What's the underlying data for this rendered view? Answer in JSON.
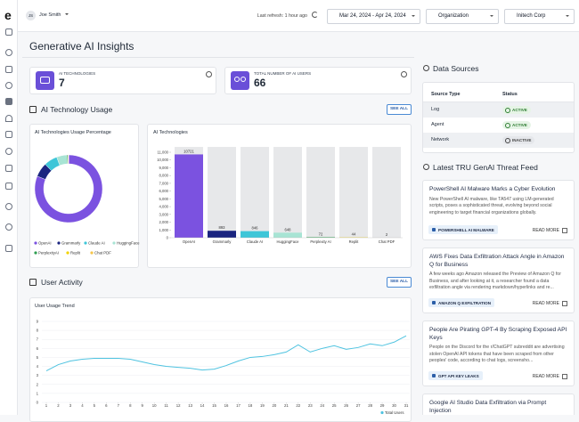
{
  "header": {
    "user_initials": "JS",
    "user_name": "Joe Smith",
    "last_refresh": "Last refresh: 1 hour ago",
    "date_range": "Mar 24, 2024 - Apr 24, 2024",
    "org_filter": "Organization",
    "org_value": "Initech Corp"
  },
  "title": "Generative AI Insights",
  "kpis": [
    {
      "label": "AI TECHNOLOGIES",
      "value": 7
    },
    {
      "label": "TOTAL NUMBER OF AI USERS",
      "value": 66
    }
  ],
  "usage": {
    "title": "AI Technology Usage",
    "see_all": "SEE ALL",
    "donut": {
      "type": "donut",
      "title": "AI Technologies Usage Percentage",
      "categories": [
        "OpenAI",
        "Grammarly",
        "Claude AI",
        "HuggingFace",
        "PerplexityAI",
        "Replit",
        "Chat PDF"
      ],
      "values": [
        81.1,
        6.8,
        6.4,
        4.9,
        0.5,
        0.3,
        0.02
      ],
      "colors": [
        "#7b52e0",
        "#1b2580",
        "#3ec6d8",
        "#a8e4d4",
        "#2e9e50",
        "#f2d200",
        "#f6c54a"
      ]
    },
    "bars": {
      "type": "bar",
      "title": "AI Technologies",
      "categories": [
        "OpenAI",
        "Grammarly",
        "Claude AI",
        "HuggingFace",
        "Perplexity AI",
        "Replit",
        "Chat PDF"
      ],
      "values": [
        10721,
        893,
        846,
        648,
        72,
        44,
        2
      ],
      "colors": [
        "#7b52e0",
        "#1b2580",
        "#3ec6d8",
        "#a8e4d4",
        "#2e9e50",
        "#f2d200",
        "#f6c54a"
      ],
      "ylim": [
        0,
        11000
      ],
      "yticks": [
        0,
        {
          "value": 1000,
          "label": "1,000"
        },
        {
          "value": 2000,
          "label": "2,000"
        },
        {
          "value": 3000,
          "label": "3,000"
        },
        {
          "value": 4000,
          "label": "4,000"
        },
        {
          "value": 5000,
          "label": "5,000"
        },
        {
          "value": 6000,
          "label": "6,000"
        },
        {
          "value": 7000,
          "label": "7,000"
        },
        {
          "value": 8000,
          "label": "8,000"
        },
        {
          "value": 9000,
          "label": "9,000"
        },
        {
          "value": 10000,
          "label": "10,000"
        },
        {
          "value": 11000,
          "label": "11,000"
        }
      ]
    }
  },
  "activity": {
    "title": "User Activity",
    "see_all": "SEE ALL",
    "chart": {
      "type": "line",
      "title": "User Usage Trend",
      "x": [
        1,
        2,
        3,
        4,
        5,
        6,
        7,
        8,
        9,
        10,
        11,
        12,
        13,
        14,
        15,
        16,
        17,
        18,
        19,
        20,
        21,
        22,
        23,
        24,
        25,
        26,
        27,
        28,
        29,
        30,
        31
      ],
      "xlim": [
        1,
        31
      ],
      "xticks": [
        1,
        2,
        3,
        4,
        5,
        6,
        7,
        8,
        9,
        10,
        11,
        12,
        13,
        14,
        15,
        16,
        17,
        18,
        19,
        20,
        21,
        22,
        23,
        24,
        25,
        26,
        27,
        28,
        29,
        30,
        31
      ],
      "ylim": [
        0,
        9
      ],
      "yticks": [
        0,
        1,
        2,
        3,
        4,
        5,
        6,
        7,
        8,
        9
      ],
      "grid": true,
      "series": [
        {
          "name": "Total Users",
          "color": "#4fc3e0",
          "values": [
            3.5,
            4.2,
            4.6,
            4.8,
            4.9,
            4.9,
            4.9,
            4.8,
            4.5,
            4.2,
            4.0,
            3.9,
            3.8,
            3.6,
            3.7,
            4.1,
            4.6,
            5.0,
            5.1,
            5.3,
            5.6,
            6.4,
            5.6,
            6.0,
            6.3,
            5.9,
            6.1,
            6.5,
            6.3,
            6.7,
            7.4
          ]
        }
      ]
    }
  },
  "data_sources": {
    "title": "Data Sources",
    "columns": [
      "Source Type",
      "Status"
    ],
    "rows": [
      [
        "Log",
        "ACTIVE"
      ],
      [
        "Agent",
        "ACTIVE"
      ],
      [
        "Network",
        "INACTIVE"
      ]
    ]
  },
  "feed": {
    "title": "Latest TRU GenAI Threat Feed",
    "read_more": "READ MORE",
    "items": [
      {
        "title": "PowerShell AI Malware Marks a Cyber Evolution",
        "text": "New PowerShell AI malware, like TA547 using LM-generated scripts, poses a sophisticated threat, evolving beyond social engineering to target financial organizations globally.",
        "tag": "POWERSHELL AI MALWARE"
      },
      {
        "title": "AWS Fixes Data Exfiltration Attack Angle in Amazon Q for Business",
        "text": "A few weeks ago Amazon released the Preview of Amazon Q for Business, and after looking at it, a researcher found a data exfiltration angle via rendering markdown/hyperlinks and re...",
        "tag": "AMAZON Q EXFILTRATION"
      },
      {
        "title": "People Are Pirating GPT-4 By Scraping Exposed API Keys",
        "text": "People on the Discord for the r/ChatGPT subreddit are advertising stolen OpenAI API tokens that have been scraped from other peoples' code, according to chat logs, screensho...",
        "tag": "GPT API KEY LEAKS"
      },
      {
        "title": "Google AI Studio Data Exfiltration via Prompt Injection"
      }
    ]
  }
}
